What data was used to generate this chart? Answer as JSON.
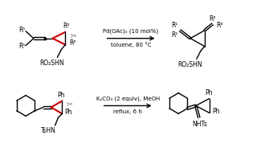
{
  "bg_color": "#ffffff",
  "reaction1": {
    "conditions_line1": "Pd(OAc)₂ (10 mol%)",
    "conditions_line2": "toluene, 80 °C"
  },
  "reaction2": {
    "conditions_line1": "K₂CO₃ (2 equiv), MeOH",
    "conditions_line2": "reflux, 6 h"
  },
  "arrow_color": "#000000",
  "red_color": "#cc0000",
  "bond_color": "#000000",
  "text_color": "#000000",
  "scissors_color": "#777777"
}
